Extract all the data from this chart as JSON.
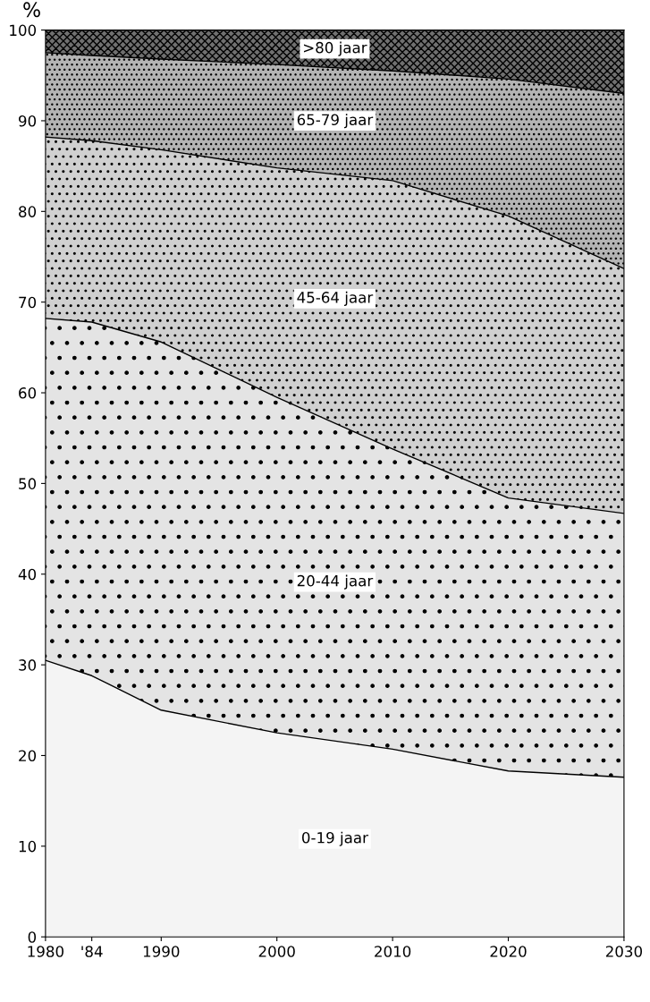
{
  "chart_data": {
    "type": "area",
    "stacked": true,
    "ylabel": "%",
    "x": [
      1980,
      1984,
      1990,
      2000,
      2010,
      2020,
      2030
    ],
    "series": [
      {
        "name": "0-19 jaar",
        "color": "#f4f4f4",
        "values": [
          30.5,
          28.8,
          25.0,
          22.5,
          20.7,
          18.3,
          17.6
        ]
      },
      {
        "name": "20-44 jaar",
        "color": "#e4e4e4",
        "values": [
          37.7,
          39.0,
          40.6,
          37.0,
          33.1,
          30.1,
          29.1
        ]
      },
      {
        "name": "45-64 jaar",
        "color": "#d0d0d0",
        "values": [
          20.0,
          20.0,
          21.2,
          25.3,
          29.6,
          31.1,
          27.0
        ]
      },
      {
        "name": "65-79 jaar",
        "color": "#b4b4b4",
        "values": [
          9.3,
          9.4,
          10.0,
          11.4,
          12.1,
          15.1,
          19.3
        ]
      },
      {
        "name": ">80 jaar",
        "color": "#707070",
        "values": [
          2.5,
          2.8,
          3.2,
          3.8,
          4.5,
          5.4,
          7.0
        ]
      }
    ],
    "xlim": [
      1980,
      2030
    ],
    "xticks": [
      1980,
      {
        "value": 1984,
        "label": "'84"
      },
      1990,
      2000,
      2010,
      2020,
      2030
    ],
    "ylim": [
      0,
      100
    ],
    "yticks": [
      0,
      10,
      20,
      30,
      40,
      50,
      60,
      70,
      80,
      90,
      100
    ],
    "grid": false,
    "legend": false
  }
}
